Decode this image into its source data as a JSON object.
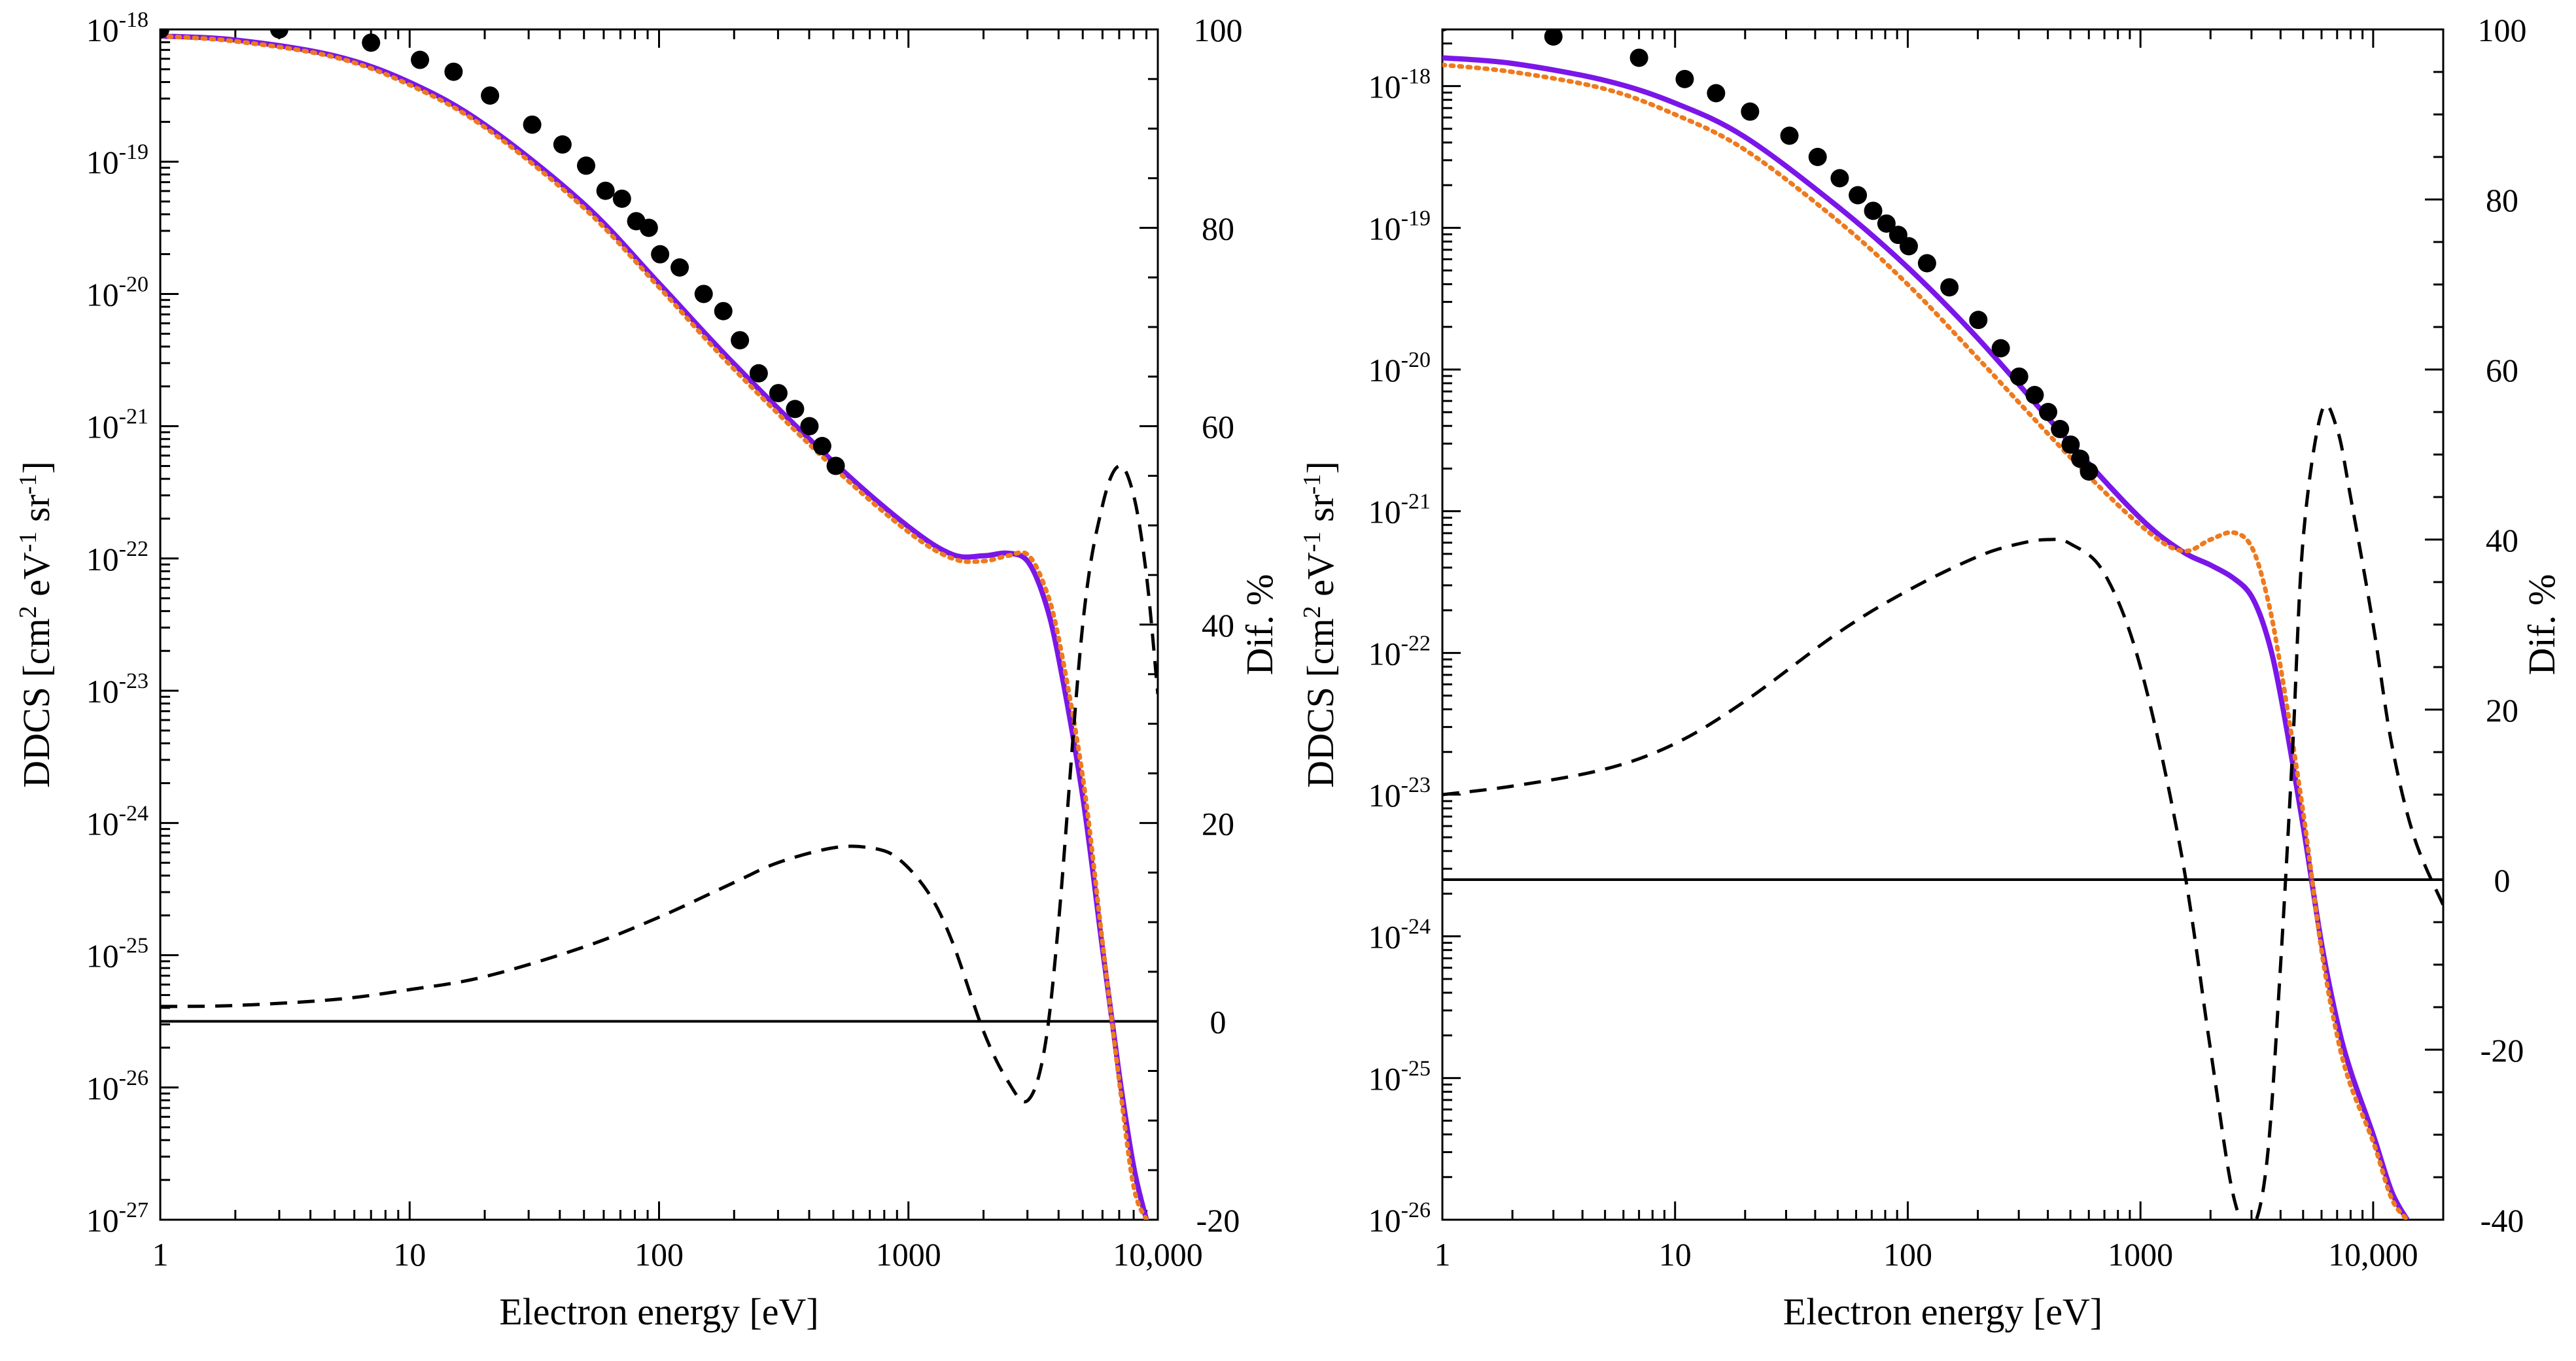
{
  "colors": {
    "theory_a": "#7B16E8",
    "theory_b": "#EE7A1E",
    "difference": "#000000",
    "experiment": "#000000"
  },
  "chart_data": [
    {
      "type": "scatter",
      "xscale": "log",
      "yscale": "log",
      "xlabel": "Electron energy [eV]",
      "ylabel_parts": {
        "main": "DDCS [cm",
        "e1": "2",
        "mid1": " eV",
        "e2": "-1",
        "mid2": " sr",
        "e3": "-1",
        "end": "]"
      },
      "y2label": "Dif. %",
      "xlim": [
        1,
        10000
      ],
      "ylim_exp": [
        -27,
        -18
      ],
      "y2lim": [
        -20,
        100
      ],
      "x_ticks": [
        1,
        10,
        100,
        1000,
        10000
      ],
      "x_tick_labels": [
        "1",
        "10",
        "100",
        "1000",
        "10,000"
      ],
      "y_tick_base": "10",
      "y_tick_exponents": [
        "-18",
        "-19",
        "-20",
        "-21",
        "-22",
        "-23",
        "-24",
        "-25",
        "-26",
        "-27"
      ],
      "y2_ticks": [
        -20,
        0,
        20,
        40,
        60,
        80,
        100
      ],
      "y2_tick_labels": [
        "-20",
        "0",
        "20",
        "40",
        "60",
        "80",
        "100"
      ],
      "series": [
        {
          "name": "theory_a",
          "style": "solid purple",
          "x": [
            1,
            2,
            5,
            10,
            20,
            50,
            100,
            200,
            500,
            1000,
            1500,
            2000,
            2500,
            3000,
            3500,
            4000,
            5000,
            6000,
            7000,
            8000,
            9000
          ],
          "log10y": [
            -18.05,
            -18.08,
            -18.2,
            -18.4,
            -18.72,
            -19.32,
            -19.92,
            -20.53,
            -21.27,
            -21.76,
            -21.97,
            -21.98,
            -21.96,
            -22.02,
            -22.3,
            -22.75,
            -23.8,
            -24.95,
            -25.9,
            -26.6,
            -27.0
          ]
        },
        {
          "name": "theory_b",
          "style": "dotted orange",
          "x": [
            1,
            2,
            5,
            10,
            20,
            50,
            100,
            200,
            500,
            1000,
            1500,
            2000,
            2500,
            3000,
            3500,
            4000,
            5000,
            6000,
            7000,
            8000,
            9000
          ],
          "log10y": [
            -18.05,
            -18.09,
            -18.21,
            -18.42,
            -18.74,
            -19.35,
            -19.95,
            -20.57,
            -21.31,
            -21.8,
            -22.0,
            -22.02,
            -21.98,
            -21.97,
            -22.2,
            -22.6,
            -23.65,
            -24.9,
            -25.95,
            -26.75,
            -27.0
          ]
        },
        {
          "name": "difference",
          "style": "dashed black",
          "axis": "right",
          "x": [
            1,
            2,
            5,
            10,
            20,
            50,
            100,
            200,
            300,
            500,
            700,
            900,
            1200,
            1500,
            2000,
            2500,
            3000,
            3500,
            4000,
            5000,
            6000,
            7000,
            8000,
            9000,
            10000
          ],
          "y": [
            1.5,
            1.6,
            2.2,
            3.2,
            4.5,
            7.5,
            10.5,
            14,
            16,
            17.5,
            17.5,
            16.5,
            13,
            8,
            -1,
            -6,
            -8,
            -3,
            10,
            40,
            52,
            56,
            53,
            45,
            33
          ]
        },
        {
          "name": "experiment",
          "style": "black circles",
          "x": [
            1,
            3,
            7,
            11,
            15,
            21,
            31,
            41,
            51,
            61,
            71,
            81,
            91,
            101,
            121,
            151,
            181,
            211,
            251,
            301,
            351,
            401,
            451,
            511
          ],
          "log10y": [
            -18.0,
            -18.0,
            -18.1,
            -18.23,
            -18.32,
            -18.5,
            -18.72,
            -18.87,
            -19.03,
            -19.22,
            -19.28,
            -19.45,
            -19.5,
            -19.7,
            -19.8,
            -20.0,
            -20.13,
            -20.35,
            -20.6,
            -20.75,
            -20.87,
            -21.0,
            -21.15,
            -21.3
          ]
        }
      ]
    },
    {
      "type": "scatter",
      "xscale": "log",
      "yscale": "log",
      "xlabel": "Electron energy [eV]",
      "ylabel_parts": {
        "main": "DDCS [cm",
        "e1": "2",
        "mid1": " eV",
        "e2": "-1",
        "mid2": " sr",
        "e3": "-1",
        "end": "]"
      },
      "y2label": "Dif. %",
      "xlim": [
        1,
        20000
      ],
      "ylim_exp": [
        -26,
        -17.6
      ],
      "y2lim": [
        -40,
        100
      ],
      "x_ticks": [
        1,
        10,
        100,
        1000,
        10000
      ],
      "x_tick_labels": [
        "1",
        "10",
        "100",
        "1000",
        "10,000"
      ],
      "y_tick_base": "10",
      "y_tick_exponents": [
        "-18",
        "-19",
        "-20",
        "-21",
        "-22",
        "-23",
        "-24",
        "-25",
        "-26"
      ],
      "y2_ticks": [
        -40,
        -20,
        0,
        20,
        40,
        60,
        80,
        100
      ],
      "y2_tick_labels": [
        "-40",
        "-20",
        "0",
        "20",
        "40",
        "60",
        "80",
        "100"
      ],
      "series": [
        {
          "name": "theory_a",
          "style": "solid purple",
          "x": [
            1,
            2,
            5,
            10,
            20,
            50,
            100,
            200,
            500,
            1000,
            1500,
            2000,
            2500,
            3000,
            3500,
            4000,
            5000,
            6000,
            7000,
            8000,
            10000,
            12000,
            14000
          ],
          "log10y": [
            -17.8,
            -17.84,
            -17.96,
            -18.12,
            -18.36,
            -18.85,
            -19.28,
            -19.78,
            -20.52,
            -21.05,
            -21.28,
            -21.38,
            -21.47,
            -21.6,
            -21.88,
            -22.3,
            -23.22,
            -24.05,
            -24.6,
            -24.95,
            -25.4,
            -25.8,
            -26.0
          ]
        },
        {
          "name": "theory_b",
          "style": "dotted orange",
          "x": [
            1,
            2,
            5,
            10,
            20,
            50,
            100,
            200,
            500,
            1000,
            1500,
            2000,
            2500,
            3000,
            3500,
            4000,
            5000,
            6000,
            7000,
            8000,
            10000,
            12000,
            14000
          ],
          "log10y": [
            -17.85,
            -17.9,
            -18.02,
            -18.2,
            -18.45,
            -18.95,
            -19.4,
            -19.92,
            -20.62,
            -21.1,
            -21.28,
            -21.2,
            -21.15,
            -21.25,
            -21.6,
            -22.1,
            -23.12,
            -24.1,
            -24.7,
            -25.05,
            -25.45,
            -25.85,
            -26.0
          ]
        },
        {
          "name": "difference",
          "style": "dashed black",
          "axis": "right",
          "x": [
            1,
            2,
            5,
            10,
            20,
            50,
            100,
            200,
            300,
            400,
            500,
            700,
            1000,
            1500,
            2000,
            2500,
            3000,
            3500,
            4000,
            4500,
            5000,
            6000,
            7000,
            8000,
            10000,
            12000,
            15000,
            20000
          ],
          "y": [
            10,
            11,
            13,
            16,
            21,
            29,
            34,
            38,
            39.5,
            40,
            39.5,
            36,
            25,
            3,
            -20,
            -37,
            -41,
            -33,
            -10,
            15,
            40,
            55,
            53,
            45,
            30,
            16,
            5,
            -3
          ]
        },
        {
          "name": "experiment",
          "style": "black circles",
          "x": [
            1,
            3,
            7,
            11,
            15,
            21,
            31,
            41,
            51,
            61,
            71,
            81,
            91,
            101,
            121,
            151,
            201,
            251,
            301,
            351,
            401,
            451,
            501,
            551,
            601
          ],
          "log10y": [
            -17.55,
            -17.65,
            -17.8,
            -17.95,
            -18.05,
            -18.18,
            -18.35,
            -18.5,
            -18.65,
            -18.77,
            -18.88,
            -18.97,
            -19.05,
            -19.13,
            -19.25,
            -19.42,
            -19.65,
            -19.85,
            -20.05,
            -20.18,
            -20.3,
            -20.42,
            -20.53,
            -20.63,
            -20.72
          ]
        }
      ]
    }
  ]
}
